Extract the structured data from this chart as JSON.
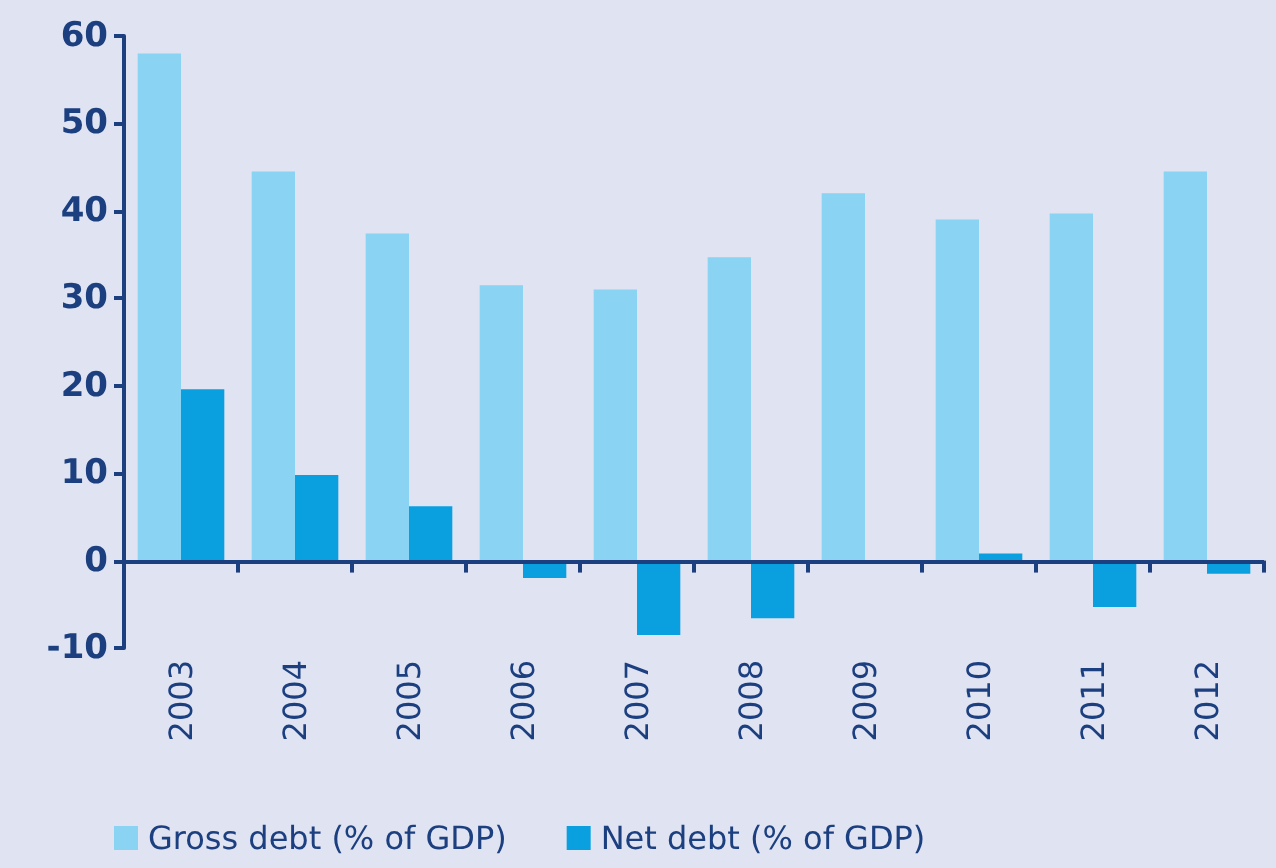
{
  "chart_data": {
    "type": "bar",
    "categories": [
      "2003",
      "2004",
      "2005",
      "2006",
      "2007",
      "2008",
      "2009",
      "2010",
      "2011",
      "2012"
    ],
    "series": [
      {
        "name": "Gross debt (% of GDP)",
        "color": "#8ad3f3",
        "values": [
          58,
          44.5,
          37.4,
          31.5,
          31,
          34.7,
          42,
          39,
          39.7,
          44.5
        ]
      },
      {
        "name": "Net debt (% of GDP)",
        "color": "#0aa0e0",
        "values": [
          19.6,
          9.8,
          6.2,
          -2,
          -8.5,
          -6.6,
          0,
          0.8,
          -5.3,
          -1.5
        ]
      }
    ],
    "ref_lines": [
      {
        "axis": "y",
        "value": 0,
        "color": "#1c3f7f"
      }
    ],
    "ylim": [
      -10,
      60
    ],
    "yticks": [
      -10,
      0,
      10,
      20,
      30,
      40,
      50,
      60
    ],
    "grid": false,
    "legend": "bottom left"
  }
}
